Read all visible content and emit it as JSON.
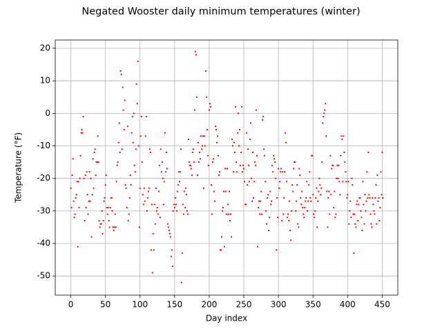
{
  "chart_data": {
    "type": "scatter",
    "title": "Negated Wooster daily minimum temperatures (winter)",
    "x_label": "Day index",
    "y_label": "Temperature (°F)",
    "color": "#ff0000",
    "grid": true,
    "xlim": [
      -22.5,
      472.5
    ],
    "ylim": [
      -55.9,
      22.55
    ],
    "xticks": [
      0,
      50,
      100,
      150,
      200,
      250,
      300,
      350,
      400,
      450
    ],
    "yticks": [
      -50,
      -40,
      -30,
      -20,
      -10,
      0,
      10,
      20
    ],
    "x": [
      0,
      1,
      2,
      3,
      4,
      5,
      6,
      7,
      8,
      9,
      10,
      11,
      12,
      13,
      14,
      15,
      16,
      17,
      18,
      19,
      20,
      21,
      22,
      23,
      24,
      25,
      26,
      27,
      28,
      29,
      30,
      31,
      32,
      33,
      34,
      35,
      36,
      37,
      38,
      39,
      40,
      41,
      42,
      43,
      44,
      45,
      46,
      47,
      48,
      49,
      50,
      51,
      52,
      53,
      54,
      55,
      56,
      57,
      58,
      59,
      60,
      61,
      62,
      63,
      64,
      65,
      66,
      67,
      68,
      69,
      70,
      71,
      72,
      73,
      74,
      75,
      76,
      77,
      78,
      79,
      80,
      81,
      82,
      83,
      84,
      85,
      86,
      87,
      88,
      89,
      90,
      91,
      92,
      93,
      94,
      95,
      96,
      97,
      98,
      99,
      100,
      101,
      102,
      103,
      104,
      105,
      106,
      107,
      108,
      109,
      110,
      111,
      112,
      113,
      114,
      115,
      116,
      117,
      118,
      119,
      120,
      121,
      122,
      123,
      124,
      125,
      126,
      127,
      128,
      129,
      130,
      131,
      132,
      133,
      134,
      135,
      136,
      137,
      138,
      139,
      140,
      141,
      142,
      143,
      144,
      145,
      146,
      147,
      148,
      149,
      150,
      151,
      152,
      153,
      154,
      155,
      156,
      157,
      158,
      159,
      160,
      161,
      162,
      163,
      164,
      165,
      166,
      167,
      168,
      169,
      170,
      171,
      172,
      173,
      174,
      175,
      176,
      177,
      178,
      179,
      180,
      181,
      182,
      183,
      184,
      185,
      186,
      187,
      188,
      189,
      190,
      191,
      192,
      193,
      194,
      195,
      196,
      197,
      198,
      199,
      200,
      201,
      202,
      203,
      204,
      205,
      206,
      207,
      208,
      209,
      210,
      211,
      212,
      213,
      214,
      215,
      216,
      217,
      218,
      219,
      220,
      221,
      222,
      223,
      224,
      225,
      226,
      227,
      228,
      229,
      230,
      231,
      232,
      233,
      234,
      235,
      236,
      237,
      238,
      239,
      240,
      241,
      242,
      243,
      244,
      245,
      246,
      247,
      248,
      249,
      250,
      251,
      252,
      253,
      254,
      255,
      256,
      257,
      258,
      259,
      260,
      261,
      262,
      263,
      264,
      265,
      266,
      267,
      268,
      269,
      270,
      271,
      272,
      273,
      274,
      275,
      276,
      277,
      278,
      279,
      280,
      281,
      282,
      283,
      284,
      285,
      286,
      287,
      288,
      289,
      290,
      291,
      292,
      293,
      294,
      295,
      296,
      297,
      298,
      299,
      300,
      301,
      302,
      303,
      304,
      305,
      306,
      307,
      308,
      309,
      310,
      311,
      312,
      313,
      314,
      315,
      316,
      317,
      318,
      319,
      320,
      321,
      322,
      323,
      324,
      325,
      326,
      327,
      328,
      329,
      330,
      331,
      332,
      333,
      334,
      335,
      336,
      337,
      338,
      339,
      340,
      341,
      342,
      343,
      344,
      345,
      346,
      347,
      348,
      349,
      350,
      351,
      352,
      353,
      354,
      355,
      356,
      357,
      358,
      359,
      360,
      361,
      362,
      363,
      364,
      365,
      366,
      367,
      368,
      369,
      370,
      371,
      372,
      373,
      374,
      375,
      376,
      377,
      378,
      379,
      380,
      381,
      382,
      383,
      384,
      385,
      386,
      387,
      388,
      389,
      390,
      391,
      392,
      393,
      394,
      395,
      396,
      397,
      398,
      399,
      400,
      401,
      402,
      403,
      404,
      405,
      406,
      407,
      408,
      409,
      410,
      411,
      412,
      413,
      414,
      415,
      416,
      417,
      418,
      419,
      420,
      421,
      422,
      423,
      424,
      425,
      426,
      427,
      428,
      429,
      430,
      431,
      432,
      433,
      434,
      435,
      436,
      437,
      438,
      439,
      440,
      441,
      442,
      443,
      444,
      445,
      446,
      447,
      448,
      449,
      450,
      451
    ],
    "values": [
      -23,
      -29,
      -19,
      -14,
      -27,
      -32,
      -31,
      -26,
      -25,
      -21,
      -41,
      -21,
      -29,
      -20,
      -13,
      -6,
      -5,
      -6,
      -1,
      -20,
      -33,
      -19,
      -29,
      -18,
      -25,
      -31,
      -27,
      -18,
      -27,
      -20,
      -38,
      -25,
      -14,
      -23,
      -12,
      -11,
      -19,
      -15,
      -15,
      -7,
      -15,
      -33,
      -35,
      -34,
      -34,
      -30,
      -37,
      -33,
      -27,
      -26,
      -22,
      -19,
      -29,
      -31,
      -29,
      -33,
      -35,
      -29,
      -26,
      -26,
      -30,
      -35,
      -36,
      -35,
      -31,
      -35,
      -21,
      -16,
      -15,
      -9,
      -3,
      -12,
      13,
      12,
      -11,
      8,
      1,
      -5,
      4,
      -22,
      -23,
      -29,
      -4,
      -33,
      -31,
      -26,
      -19,
      -22,
      -6,
      -1,
      -9,
      0,
      -16,
      -18,
      -11,
      9,
      3,
      16,
      -10,
      -35,
      -23,
      -7,
      -1,
      -15,
      -25,
      -28,
      -23,
      -27,
      -7,
      -1,
      -30,
      -26,
      -24,
      -23,
      -11,
      -12,
      -42,
      -28,
      -49,
      -37,
      -42,
      -28,
      -34,
      -23,
      -30,
      -29,
      -31,
      -24,
      -16,
      -32,
      -11,
      -18,
      -15,
      -20,
      -28,
      -21,
      -6,
      -18,
      -12,
      -17,
      -34,
      -35,
      -36,
      -37,
      -38,
      -44,
      -42,
      -47,
      -30,
      -28,
      -29,
      -26,
      -28,
      -30,
      -24,
      -22,
      -18,
      -21,
      -18,
      -11,
      -52,
      -43,
      -28,
      -31,
      -24,
      -29,
      -23,
      -25,
      -30,
      -31,
      -8,
      -15,
      -16,
      -16,
      -17,
      -19,
      -12,
      -11,
      -15,
      1,
      19,
      18,
      5,
      -19,
      -9,
      -15,
      -12,
      -14,
      -7,
      -11,
      -10,
      -7,
      -23,
      -7,
      -10,
      13,
      5,
      -5,
      -13,
      -16,
      1,
      3,
      2,
      -22,
      -31,
      -15,
      -14,
      -24,
      -27,
      -4,
      -5,
      -9,
      -7,
      -13,
      -19,
      -18,
      -42,
      -42,
      -38,
      -30,
      -29,
      -24,
      -41,
      -17,
      -24,
      -31,
      -17,
      -28,
      -31,
      -24,
      -33,
      -31,
      -38,
      -8,
      -10,
      -18,
      -9,
      -12,
      2,
      -15,
      -18,
      -6,
      0,
      -10,
      -5,
      -16,
      -12,
      2,
      -18,
      -16,
      -17,
      -21,
      -28,
      -28,
      -6,
      -22,
      -11,
      -16,
      -21,
      -8,
      -3,
      -20,
      -27,
      -12,
      -26,
      -21,
      -15,
      -16,
      1,
      -13,
      -41,
      -29,
      -27,
      -31,
      -27,
      -24,
      -31,
      -2,
      -1,
      -11,
      -13,
      -21,
      -30,
      -34,
      -26,
      -25,
      -36,
      -32,
      -24,
      -28,
      -27,
      -16,
      -18,
      -13,
      -14,
      -15,
      -20,
      -42,
      -26,
      -32,
      -17,
      -23,
      -21,
      -18,
      -17,
      -33,
      -18,
      -31,
      -26,
      -18,
      -6,
      -9,
      -21,
      -32,
      -31,
      -33,
      -27,
      -36,
      -39,
      -30,
      -22,
      -24,
      -17,
      -15,
      -15,
      -30,
      -27,
      -22,
      -34,
      -35,
      -17,
      -19,
      -26,
      -28,
      -24,
      -29,
      -31,
      -32,
      -29,
      -27,
      -26,
      -21,
      -30,
      -27,
      -22,
      -18,
      -26,
      -27,
      -13,
      -13,
      -25,
      -31,
      -32,
      -30,
      -26,
      -23,
      -35,
      -27,
      -24,
      -20,
      -22,
      -25,
      -23,
      -15,
      -3,
      -1,
      0,
      1,
      3,
      -7,
      -24,
      -35,
      -26,
      -24,
      -31,
      -13,
      -25,
      -17,
      -16,
      -16,
      -29,
      -24,
      -32,
      -31,
      -20,
      -16,
      -20,
      -16,
      -21,
      -25,
      -13,
      -7,
      -8,
      -21,
      -7,
      -12,
      -15,
      -18,
      -21,
      -26,
      -25,
      -21,
      -34,
      -30,
      -27,
      -32,
      -20,
      -22,
      -31,
      -43,
      -31,
      -34,
      -35,
      -28,
      -27,
      -33,
      -28,
      -26,
      -26,
      -30,
      -32,
      -36,
      -21,
      -28,
      -34,
      -25,
      -30,
      -27,
      -18,
      -26,
      -12,
      -25,
      -26,
      -31,
      -34,
      -35,
      -26,
      -28,
      -30,
      -31,
      -26,
      -22,
      -34,
      -19,
      -27,
      -26,
      -33,
      -29,
      -18,
      -25,
      -12,
      -26
    ]
  }
}
